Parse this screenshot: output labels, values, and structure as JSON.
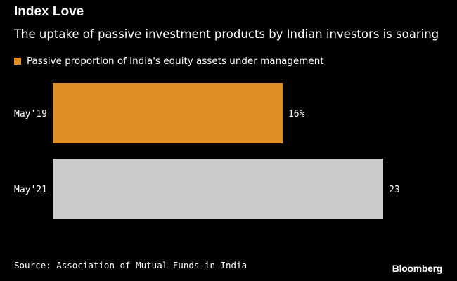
{
  "header": {
    "title": "Index Love",
    "subtitle": "The uptake of passive investment products by Indian investors is soaring"
  },
  "footer": {
    "source": "Source: Association of Mutual Funds in India",
    "brand": "Bloomberg"
  },
  "chart_data": {
    "type": "bar",
    "orientation": "horizontal",
    "categories": [
      "May'19",
      "May'21"
    ],
    "series": [
      {
        "name": "Passive proportion of India's equity assets under management",
        "values": [
          16,
          23
        ],
        "value_labels": [
          "16%",
          "23"
        ],
        "bar_colors": [
          "#e08f27",
          "#cccccc"
        ],
        "legend_color": "#e08f27"
      }
    ],
    "unit": "%",
    "xlim": [
      0,
      23
    ],
    "grid": false,
    "legend_position": "top-left"
  }
}
